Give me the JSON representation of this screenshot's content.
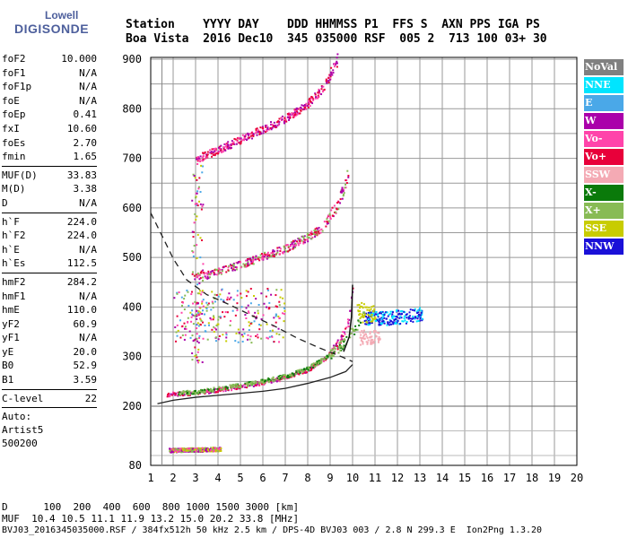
{
  "logo": {
    "top": "Lowell",
    "bottom": "DIGISONDE"
  },
  "header": {
    "line1": "Station    YYYY DAY    DDD HHMMSS P1  FFS S  AXN PPS IGA PS",
    "line2": "Boa Vista  2016 Dec10  345 035000 RSF  005 2  713 100 03+ 30"
  },
  "params": {
    "group1": [
      {
        "label": "foF2",
        "value": "10.000"
      },
      {
        "label": "foF1",
        "value": "N/A"
      },
      {
        "label": "foF1p",
        "value": "N/A"
      },
      {
        "label": "foE",
        "value": "N/A"
      },
      {
        "label": "foEp",
        "value": "0.41"
      },
      {
        "label": "fxI",
        "value": "10.60"
      },
      {
        "label": "foEs",
        "value": "2.70"
      },
      {
        "label": "fmin",
        "value": "1.65"
      }
    ],
    "group2": [
      {
        "label": "MUF(D)",
        "value": "33.83"
      },
      {
        "label": "M(D)",
        "value": "3.38"
      },
      {
        "label": "D",
        "value": "N/A"
      }
    ],
    "group3": [
      {
        "label": "h`F",
        "value": "224.0"
      },
      {
        "label": "h`F2",
        "value": "224.0"
      },
      {
        "label": "h`E",
        "value": "N/A"
      },
      {
        "label": "h`Es",
        "value": "112.5"
      }
    ],
    "group4": [
      {
        "label": "hmF2",
        "value": "284.2"
      },
      {
        "label": "hmF1",
        "value": "N/A"
      },
      {
        "label": "hmE",
        "value": "110.0"
      },
      {
        "label": "yF2",
        "value": "60.9"
      },
      {
        "label": "yF1",
        "value": "N/A"
      },
      {
        "label": "yE",
        "value": "20.0"
      },
      {
        "label": "B0",
        "value": "52.9"
      },
      {
        "label": "B1",
        "value": "3.59"
      }
    ],
    "group5": [
      {
        "label": "C-level",
        "value": "22"
      }
    ],
    "auto": [
      "Auto:",
      "Artist5",
      "500200"
    ]
  },
  "legend": [
    {
      "label": "NoVal",
      "color": "#808080"
    },
    {
      "label": "NNE",
      "color": "#00e5ff"
    },
    {
      "label": "E",
      "color": "#4aa8e8"
    },
    {
      "label": "W",
      "color": "#aa00aa"
    },
    {
      "label": "Vo-",
      "color": "#ff44aa"
    },
    {
      "label": "Vo+",
      "color": "#e8003a"
    },
    {
      "label": "SSW",
      "color": "#f4aab4"
    },
    {
      "label": "X-",
      "color": "#0a7a0a"
    },
    {
      "label": "X+",
      "color": "#88bb55"
    },
    {
      "label": "SSE",
      "color": "#c8cc00"
    },
    {
      "label": "NNW",
      "color": "#1a10d8"
    }
  ],
  "bottom": {
    "line1": "D      100  200  400  600  800 1000 1500 3000 [km]",
    "line2": "MUF  10.4 10.5 11.1 11.9 13.2 15.0 20.2 33.8 [MHz]",
    "line3": "BVJ03_2016345035000.RSF / 384fx512h 50 kHz 2.5 km / DPS-4D BVJ03 003 / 2.8 N 299.3 E  Ion2Png 1.3.20"
  },
  "chart_data": {
    "type": "scatter",
    "xlim": [
      1,
      20
    ],
    "ylim": [
      80,
      900
    ],
    "x_ticks": [
      1,
      2,
      3,
      4,
      5,
      6,
      7,
      8,
      9,
      10,
      11,
      12,
      13,
      14,
      15,
      16,
      17,
      18,
      19,
      20
    ],
    "y_ticks": [
      80,
      200,
      300,
      400,
      500,
      600,
      700,
      800,
      900
    ],
    "x_break_at": 1.5,
    "y_break_at": 200,
    "traces": [
      {
        "name": "O-trace F2 1st hop",
        "color": "#e8003a",
        "points": [
          [
            1.7,
            225
          ],
          [
            2,
            226
          ],
          [
            3,
            228
          ],
          [
            4,
            234
          ],
          [
            5,
            241
          ],
          [
            6,
            249
          ],
          [
            7,
            259
          ],
          [
            8,
            275
          ],
          [
            8.8,
            300
          ],
          [
            9.4,
            330
          ],
          [
            9.8,
            372
          ],
          [
            10,
            440
          ]
        ]
      },
      {
        "name": "X-trace F2",
        "color": "#88bb55",
        "points": [
          [
            2.2,
            228
          ],
          [
            3,
            230
          ],
          [
            4,
            237
          ],
          [
            5,
            244
          ],
          [
            6,
            252
          ],
          [
            7,
            262
          ],
          [
            8,
            278
          ],
          [
            9,
            305
          ],
          [
            9.6,
            330
          ],
          [
            10.2,
            365
          ],
          [
            10.5,
            392
          ]
        ]
      },
      {
        "name": "2nd hop",
        "color": "#e8003a",
        "points": [
          [
            2.9,
            462
          ],
          [
            3.5,
            466
          ],
          [
            4,
            472
          ],
          [
            5,
            487
          ],
          [
            6,
            503
          ],
          [
            7,
            520
          ],
          [
            8,
            543
          ],
          [
            8.6,
            560
          ],
          [
            9.2,
            600
          ],
          [
            9.6,
            640
          ],
          [
            9.8,
            680
          ]
        ]
      },
      {
        "name": "3rd hop",
        "color": "#e8003a",
        "points": [
          [
            3,
            700
          ],
          [
            4,
            718
          ],
          [
            5,
            740
          ],
          [
            6,
            760
          ],
          [
            7,
            782
          ],
          [
            8,
            812
          ],
          [
            8.6,
            840
          ],
          [
            9,
            870
          ],
          [
            9.3,
            900
          ]
        ]
      },
      {
        "name": "Es",
        "color": "#ff44aa",
        "points": [
          [
            1.8,
            112
          ],
          [
            2.2,
            112
          ],
          [
            2.7,
            113
          ],
          [
            3.3,
            113
          ],
          [
            3.7,
            114
          ],
          [
            4.1,
            114
          ]
        ]
      },
      {
        "name": "NNW cluster",
        "color": "#1a10d8",
        "points": [
          [
            10.5,
            375
          ],
          [
            10.9,
            380
          ],
          [
            11.4,
            378
          ],
          [
            11.9,
            382
          ],
          [
            12.3,
            380
          ],
          [
            12.8,
            386
          ],
          [
            13.1,
            388
          ]
        ]
      }
    ],
    "profile_line": [
      [
        1.3,
        205
      ],
      [
        2,
        212
      ],
      [
        3,
        218
      ],
      [
        4,
        222
      ],
      [
        5,
        226
      ],
      [
        6,
        230
      ],
      [
        7,
        236
      ],
      [
        8,
        246
      ],
      [
        9,
        258
      ],
      [
        9.7,
        270
      ],
      [
        10,
        284
      ]
    ],
    "profile_dashed": [
      [
        1,
        590
      ],
      [
        1.6,
        535
      ],
      [
        2,
        498
      ],
      [
        2.6,
        455
      ],
      [
        3.5,
        425
      ],
      [
        4.5,
        405
      ],
      [
        5.5,
        383
      ],
      [
        6.5,
        362
      ],
      [
        7.5,
        338
      ],
      [
        8.5,
        318
      ],
      [
        9.5,
        300
      ],
      [
        10,
        290
      ]
    ]
  }
}
